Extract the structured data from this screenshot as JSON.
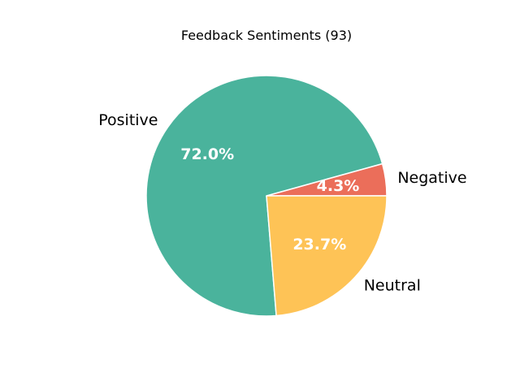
{
  "chart_data": {
    "type": "pie",
    "title": "Feedback Sentiments (93)",
    "start_angle_deg": 0,
    "direction": "counterclockwise",
    "slices": [
      {
        "label": "Negative",
        "value": 4.3,
        "pct_label": "4.3%",
        "color": "#eb6e5a"
      },
      {
        "label": "Positive",
        "value": 72.0,
        "pct_label": "72.0%",
        "color": "#4ab39c"
      },
      {
        "label": "Neutral",
        "value": 23.7,
        "pct_label": "23.7%",
        "color": "#fec356"
      }
    ],
    "edge_color": "#ffffff"
  }
}
